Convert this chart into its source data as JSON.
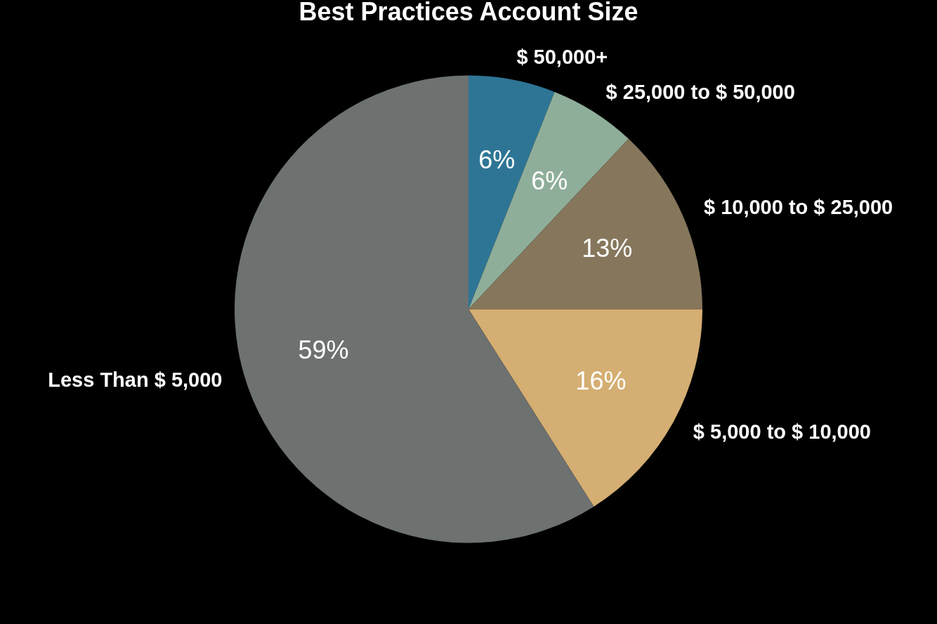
{
  "chart_data": {
    "type": "pie",
    "title": "Best Practices Account Size",
    "categories": [
      "$ 50,000+",
      "$ 25,000 to $ 50,000",
      "$ 10,000 to $ 25,000",
      "$ 5,000 to $ 10,000",
      "Less Than $ 5,000"
    ],
    "values": [
      6,
      6,
      13,
      16,
      59
    ],
    "colors": [
      "#2e7595",
      "#8fae9a",
      "#86775c",
      "#d4ae72",
      "#6d7170"
    ],
    "value_labels": [
      "6%",
      "6%",
      "13%",
      "16%",
      "59%"
    ],
    "legend": false
  }
}
